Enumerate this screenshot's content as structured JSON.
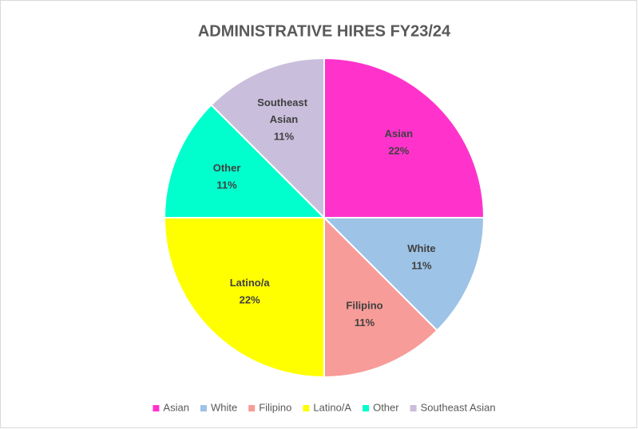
{
  "chart_data": {
    "type": "pie",
    "title": "ADMINISTRATIVE HIRES FY23/24",
    "categories": [
      "Asian",
      "White",
      "Filipino",
      "Latino/A",
      "Other",
      "Southeast Asian"
    ],
    "labels": [
      "Asian",
      "White",
      "Filipino",
      "Latino/a",
      "Other",
      "Southeast Asian"
    ],
    "values": [
      22,
      11,
      11,
      22,
      11,
      11
    ],
    "value_labels": [
      "22%",
      "11%",
      "11%",
      "22%",
      "11%",
      "11%"
    ],
    "colors": [
      "#ff33cc",
      "#9dc3e6",
      "#f79c98",
      "#ffff00",
      "#00ffcc",
      "#c9bedc"
    ],
    "legend": "bottom"
  }
}
